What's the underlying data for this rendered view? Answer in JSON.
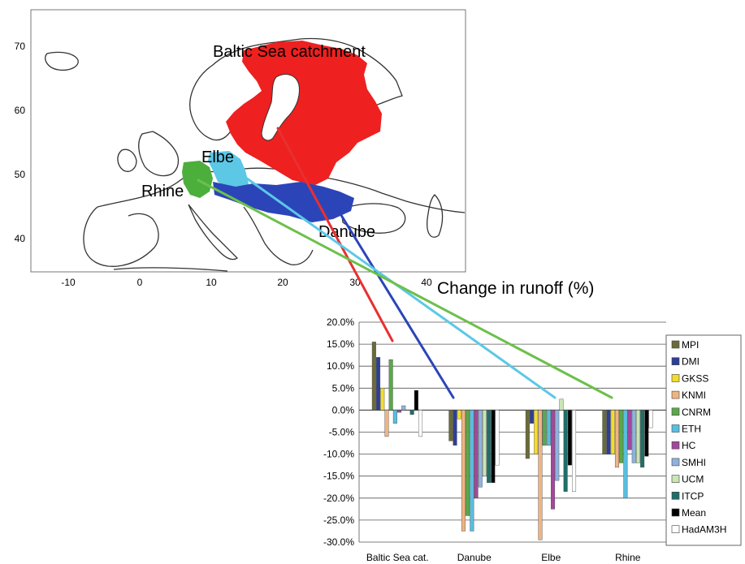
{
  "map": {
    "y_ticks": [
      "70",
      "60",
      "50",
      "40"
    ],
    "x_ticks": [
      "-10",
      "0",
      "10",
      "20",
      "30",
      "40"
    ],
    "region_labels": {
      "baltic": "Baltic Sea catchment",
      "elbe": "Elbe",
      "rhine": "Rhine",
      "danube": "Danube"
    },
    "colors": {
      "baltic": "#ee2020",
      "danube": "#2b45b8",
      "elbe": "#5cc8e6",
      "rhine": "#4caf3c"
    }
  },
  "chart_data": {
    "type": "bar",
    "title": "Change in runoff (%)",
    "categories": [
      "Baltic Sea cat.",
      "Danube",
      "Elbe",
      "Rhine"
    ],
    "y_tick_labels": [
      "20.0%",
      "15.0%",
      "10.0%",
      "5.0%",
      "0.0%",
      "-5.0%",
      "-10.0%",
      "-15.0%",
      "-20.0%",
      "-25.0%",
      "-30.0%"
    ],
    "ylim": [
      -30,
      20
    ],
    "grid": true,
    "legend_position": "right",
    "series": [
      {
        "name": "MPI",
        "color": "#6b6b3a",
        "values": [
          15.5,
          -7,
          -11,
          -10
        ]
      },
      {
        "name": "DMI",
        "color": "#2d3f96",
        "values": [
          12,
          -8,
          -3,
          -10
        ]
      },
      {
        "name": "GKSS",
        "color": "#f2dc2e",
        "values": [
          5,
          -2,
          -10,
          -10
        ]
      },
      {
        "name": "KNMI",
        "color": "#f0b481",
        "values": [
          -6,
          -27.5,
          -29.5,
          -13
        ]
      },
      {
        "name": "CNRM",
        "color": "#5aa84a",
        "values": [
          11.5,
          -24,
          -8,
          -12
        ]
      },
      {
        "name": "ETH",
        "color": "#58bfe0",
        "values": [
          -3,
          -27.5,
          -8,
          -20
        ]
      },
      {
        "name": "HC",
        "color": "#a3479d",
        "values": [
          -0.5,
          -20,
          -22.5,
          -9
        ]
      },
      {
        "name": "SMHI",
        "color": "#8fb2dc",
        "values": [
          1,
          -17.5,
          -16,
          -12
        ]
      },
      {
        "name": "UCM",
        "color": "#c9e6b5",
        "values": [
          0,
          -15,
          2.5,
          -12
        ]
      },
      {
        "name": "ITCP",
        "color": "#1f6e6a",
        "values": [
          -1,
          -16.5,
          -18.5,
          -13
        ]
      },
      {
        "name": "Mean",
        "color": "#000000",
        "values": [
          4.5,
          -16.5,
          -12.5,
          -10.5
        ]
      },
      {
        "name": "HadAM3H",
        "color": "#ffffff",
        "values": [
          -6,
          -12.5,
          -18.5,
          -4
        ]
      }
    ]
  }
}
